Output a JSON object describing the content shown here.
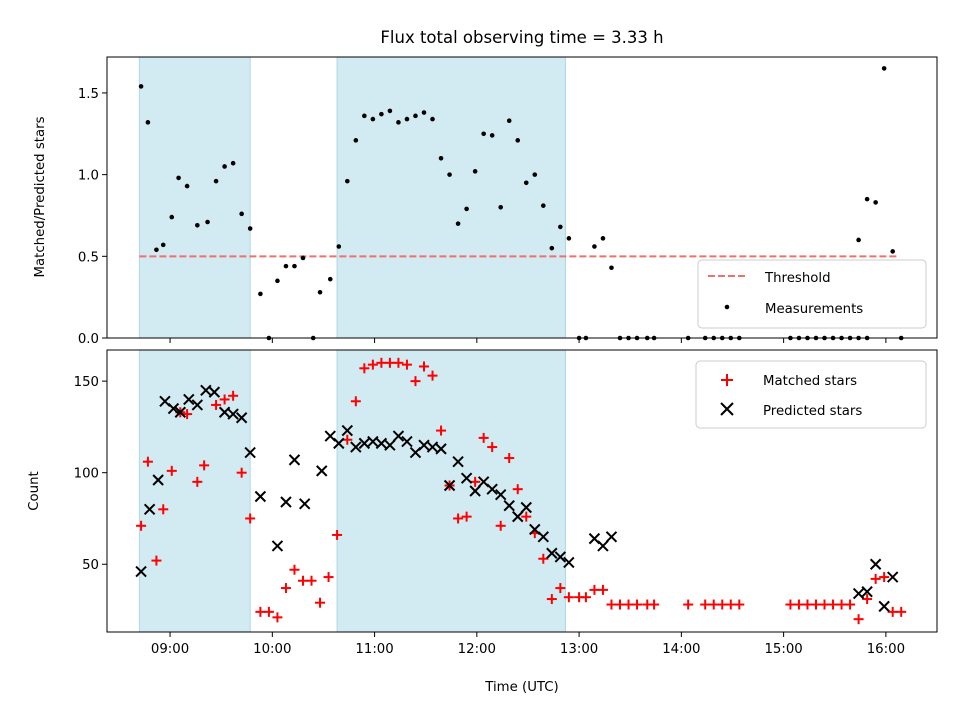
{
  "chart_data": [
    {
      "type": "scatter",
      "title": "Flux total observing time = 3.33 h",
      "xlabel": "",
      "ylabel": "Matched/Predicted stars",
      "xlim": [
        "08:23",
        "16:30"
      ],
      "ylim": [
        0,
        1.72
      ],
      "yticks": [
        0.0,
        0.5,
        1.0,
        1.5
      ],
      "ytick_labels": [
        "0.0",
        "0.5",
        "1.0",
        "1.5"
      ],
      "xticks": [
        "09:00",
        "10:00",
        "11:00",
        "12:00",
        "13:00",
        "14:00",
        "15:00",
        "16:00"
      ],
      "shaded_intervals": [
        [
          "08:42",
          "09:47"
        ],
        [
          "10:38",
          "12:52"
        ]
      ],
      "shade_color": "#add8e6",
      "threshold": {
        "name": "Threshold",
        "value": 0.5,
        "x_range": [
          "08:42",
          "16:08"
        ],
        "color": "#f07070",
        "style": "dashed"
      },
      "series": [
        {
          "name": "Measurements",
          "marker": "dot",
          "color": "#000000",
          "points": [
            [
              "08:43",
              1.54
            ],
            [
              "08:47",
              1.32
            ],
            [
              "08:52",
              0.54
            ],
            [
              "08:56",
              0.57
            ],
            [
              "09:01",
              0.74
            ],
            [
              "09:05",
              0.98
            ],
            [
              "09:10",
              0.93
            ],
            [
              "09:16",
              0.69
            ],
            [
              "09:22",
              0.71
            ],
            [
              "09:27",
              0.96
            ],
            [
              "09:32",
              1.05
            ],
            [
              "09:37",
              1.07
            ],
            [
              "09:42",
              0.76
            ],
            [
              "09:47",
              0.67
            ],
            [
              "09:53",
              0.27
            ],
            [
              "09:58",
              0.0
            ],
            [
              "10:03",
              0.35
            ],
            [
              "10:08",
              0.44
            ],
            [
              "10:13",
              0.44
            ],
            [
              "10:18",
              0.49
            ],
            [
              "10:24",
              0.0
            ],
            [
              "10:28",
              0.28
            ],
            [
              "10:34",
              0.36
            ],
            [
              "10:39",
              0.56
            ],
            [
              "10:44",
              0.96
            ],
            [
              "10:49",
              1.21
            ],
            [
              "10:54",
              1.36
            ],
            [
              "10:59",
              1.34
            ],
            [
              "11:04",
              1.37
            ],
            [
              "11:09",
              1.39
            ],
            [
              "11:14",
              1.32
            ],
            [
              "11:19",
              1.34
            ],
            [
              "11:24",
              1.36
            ],
            [
              "11:29",
              1.38
            ],
            [
              "11:34",
              1.34
            ],
            [
              "11:39",
              1.1
            ],
            [
              "11:44",
              1.0
            ],
            [
              "11:49",
              0.7
            ],
            [
              "11:54",
              0.79
            ],
            [
              "11:59",
              1.02
            ],
            [
              "12:04",
              1.25
            ],
            [
              "12:09",
              1.24
            ],
            [
              "12:14",
              0.8
            ],
            [
              "12:19",
              1.33
            ],
            [
              "12:24",
              1.21
            ],
            [
              "12:29",
              0.95
            ],
            [
              "12:34",
              1.0
            ],
            [
              "12:39",
              0.81
            ],
            [
              "12:44",
              0.55
            ],
            [
              "12:49",
              0.68
            ],
            [
              "12:54",
              0.61
            ],
            [
              "13:00",
              0.0
            ],
            [
              "13:04",
              0.0
            ],
            [
              "13:09",
              0.56
            ],
            [
              "13:14",
              0.61
            ],
            [
              "13:19",
              0.43
            ],
            [
              "13:24",
              0.0
            ],
            [
              "13:29",
              0.0
            ],
            [
              "13:34",
              0.0
            ],
            [
              "13:40",
              0.0
            ],
            [
              "13:44",
              0.0
            ],
            [
              "14:04",
              0.0
            ],
            [
              "14:14",
              0.0
            ],
            [
              "14:19",
              0.0
            ],
            [
              "14:24",
              0.0
            ],
            [
              "14:29",
              0.0
            ],
            [
              "14:34",
              0.0
            ],
            [
              "15:04",
              0.0
            ],
            [
              "15:09",
              0.0
            ],
            [
              "15:14",
              0.0
            ],
            [
              "15:19",
              0.0
            ],
            [
              "15:24",
              0.0
            ],
            [
              "15:29",
              0.0
            ],
            [
              "15:34",
              0.0
            ],
            [
              "15:39",
              0.0
            ],
            [
              "15:44",
              0.0
            ],
            [
              "15:49",
              0.0
            ],
            [
              "15:44",
              0.6
            ],
            [
              "15:49",
              0.85
            ],
            [
              "15:54",
              0.83
            ],
            [
              "15:59",
              1.65
            ],
            [
              "16:04",
              0.53
            ],
            [
              "16:09",
              0.0
            ]
          ]
        }
      ],
      "legend": {
        "position": "lower right",
        "entries": [
          "Threshold",
          "Measurements"
        ]
      }
    },
    {
      "type": "scatter",
      "title": "",
      "xlabel": "Time (UTC)",
      "ylabel": "Count",
      "xlim": [
        "08:23",
        "16:30"
      ],
      "ylim": [
        13,
        167
      ],
      "yticks": [
        50,
        100,
        150
      ],
      "ytick_labels": [
        "50",
        "100",
        "150"
      ],
      "xticks": [
        "09:00",
        "10:00",
        "11:00",
        "12:00",
        "13:00",
        "14:00",
        "15:00",
        "16:00"
      ],
      "xtick_labels": [
        "09:00",
        "10:00",
        "11:00",
        "12:00",
        "13:00",
        "14:00",
        "15:00",
        "16:00"
      ],
      "shaded_intervals": [
        [
          "08:42",
          "09:47"
        ],
        [
          "10:38",
          "12:52"
        ]
      ],
      "shade_color": "#add8e6",
      "series": [
        {
          "name": "Matched stars",
          "marker": "plus",
          "color": "#ff0000",
          "points": [
            [
              "08:43",
              71
            ],
            [
              "08:47",
              106
            ],
            [
              "08:52",
              52
            ],
            [
              "08:56",
              80
            ],
            [
              "09:01",
              101
            ],
            [
              "09:06",
              133
            ],
            [
              "09:10",
              132
            ],
            [
              "09:16",
              95
            ],
            [
              "09:20",
              104
            ],
            [
              "09:27",
              137
            ],
            [
              "09:32",
              140
            ],
            [
              "09:37",
              142
            ],
            [
              "09:42",
              100
            ],
            [
              "09:47",
              75
            ],
            [
              "09:53",
              24
            ],
            [
              "09:58",
              24
            ],
            [
              "10:03",
              21
            ],
            [
              "10:08",
              37
            ],
            [
              "10:13",
              47
            ],
            [
              "10:18",
              41
            ],
            [
              "10:23",
              41
            ],
            [
              "10:28",
              29
            ],
            [
              "10:33",
              43
            ],
            [
              "10:38",
              66
            ],
            [
              "10:44",
              118
            ],
            [
              "10:49",
              139
            ],
            [
              "10:54",
              157
            ],
            [
              "10:59",
              159
            ],
            [
              "11:04",
              160
            ],
            [
              "11:09",
              160
            ],
            [
              "11:14",
              160
            ],
            [
              "11:19",
              159
            ],
            [
              "11:24",
              150
            ],
            [
              "11:29",
              158
            ],
            [
              "11:34",
              153
            ],
            [
              "11:39",
              123
            ],
            [
              "11:44",
              93
            ],
            [
              "11:49",
              75
            ],
            [
              "11:54",
              76
            ],
            [
              "11:59",
              95
            ],
            [
              "12:04",
              119
            ],
            [
              "12:09",
              114
            ],
            [
              "12:14",
              71
            ],
            [
              "12:19",
              108
            ],
            [
              "12:24",
              91
            ],
            [
              "12:29",
              76
            ],
            [
              "12:34",
              67
            ],
            [
              "12:39",
              53
            ],
            [
              "12:44",
              31
            ],
            [
              "12:49",
              37
            ],
            [
              "12:54",
              32
            ],
            [
              "13:00",
              32
            ],
            [
              "13:04",
              32
            ],
            [
              "13:09",
              36
            ],
            [
              "13:14",
              36
            ],
            [
              "13:19",
              28
            ],
            [
              "13:24",
              28
            ],
            [
              "13:29",
              28
            ],
            [
              "13:34",
              28
            ],
            [
              "13:40",
              28
            ],
            [
              "13:44",
              28
            ],
            [
              "14:04",
              28
            ],
            [
              "14:14",
              28
            ],
            [
              "14:19",
              28
            ],
            [
              "14:24",
              28
            ],
            [
              "14:29",
              28
            ],
            [
              "14:34",
              28
            ],
            [
              "15:04",
              28
            ],
            [
              "15:09",
              28
            ],
            [
              "15:14",
              28
            ],
            [
              "15:19",
              28
            ],
            [
              "15:24",
              28
            ],
            [
              "15:29",
              28
            ],
            [
              "15:34",
              28
            ],
            [
              "15:39",
              28
            ],
            [
              "15:44",
              20
            ],
            [
              "15:49",
              31
            ],
            [
              "15:54",
              42
            ],
            [
              "15:59",
              43
            ],
            [
              "16:04",
              24
            ],
            [
              "16:09",
              24
            ]
          ]
        },
        {
          "name": "Predicted stars",
          "marker": "x",
          "color": "#000000",
          "points": [
            [
              "08:43",
              46
            ],
            [
              "08:48",
              80
            ],
            [
              "08:53",
              96
            ],
            [
              "08:57",
              139
            ],
            [
              "09:02",
              135
            ],
            [
              "09:06",
              133
            ],
            [
              "09:11",
              140
            ],
            [
              "09:16",
              137
            ],
            [
              "09:21",
              145
            ],
            [
              "09:26",
              144
            ],
            [
              "09:32",
              133
            ],
            [
              "09:37",
              132
            ],
            [
              "09:42",
              130
            ],
            [
              "09:47",
              111
            ],
            [
              "09:53",
              87
            ],
            [
              "10:03",
              60
            ],
            [
              "10:08",
              84
            ],
            [
              "10:13",
              107
            ],
            [
              "10:19",
              83
            ],
            [
              "10:29",
              101
            ],
            [
              "10:34",
              120
            ],
            [
              "10:39",
              116
            ],
            [
              "10:44",
              123
            ],
            [
              "10:49",
              114
            ],
            [
              "10:54",
              116
            ],
            [
              "10:59",
              117
            ],
            [
              "11:04",
              116
            ],
            [
              "11:09",
              115
            ],
            [
              "11:14",
              120
            ],
            [
              "11:19",
              117
            ],
            [
              "11:24",
              111
            ],
            [
              "11:29",
              115
            ],
            [
              "11:34",
              114
            ],
            [
              "11:39",
              113
            ],
            [
              "11:44",
              93
            ],
            [
              "11:49",
              106
            ],
            [
              "11:54",
              97
            ],
            [
              "11:59",
              90
            ],
            [
              "12:04",
              95
            ],
            [
              "12:09",
              91
            ],
            [
              "12:14",
              88
            ],
            [
              "12:19",
              82
            ],
            [
              "12:24",
              76
            ],
            [
              "12:29",
              81
            ],
            [
              "12:34",
              69
            ],
            [
              "12:39",
              65
            ],
            [
              "12:44",
              56
            ],
            [
              "12:49",
              54
            ],
            [
              "12:54",
              51
            ],
            [
              "13:09",
              64
            ],
            [
              "13:14",
              60
            ],
            [
              "13:19",
              65
            ],
            [
              "15:44",
              34
            ],
            [
              "15:49",
              35
            ],
            [
              "15:54",
              50
            ],
            [
              "15:59",
              27
            ],
            [
              "16:04",
              43
            ]
          ]
        }
      ],
      "legend": {
        "position": "upper right",
        "entries": [
          "Matched stars",
          "Predicted stars"
        ]
      }
    }
  ]
}
